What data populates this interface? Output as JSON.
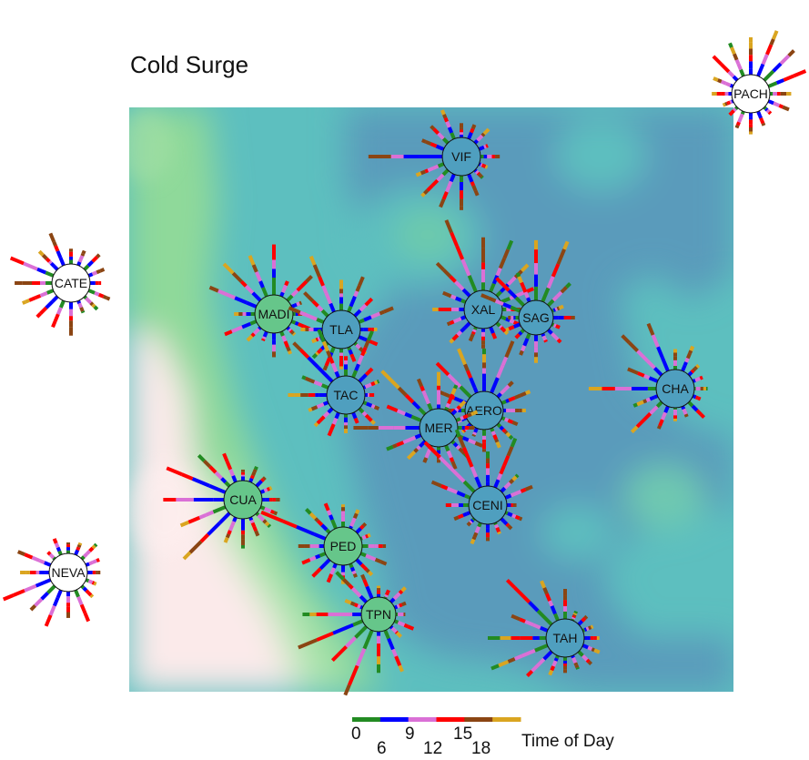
{
  "title": "Cold Surge",
  "legend": {
    "title": "Time of Day",
    "hours": [
      "0",
      "6",
      "9",
      "12",
      "15",
      "18"
    ],
    "colors": [
      "#228b22",
      "#0000ff",
      "#da70d6",
      "#ff0000",
      "#8b4513",
      "#daa520"
    ]
  },
  "palette": {
    "water_dark": "#5a9bbb",
    "water_light": "#5dbfbf",
    "land_green": "#8fd99a",
    "land_pale": "#fbeaea",
    "marker_blue": "#4f9fbf",
    "marker_green": "#66c68a",
    "marker_white": "#ffffff"
  },
  "stations": [
    {
      "id": "VIF",
      "fill": "marker_blue"
    },
    {
      "id": "PACH",
      "fill": "marker_white"
    },
    {
      "id": "CATE",
      "fill": "marker_white"
    },
    {
      "id": "MADI",
      "fill": "marker_green"
    },
    {
      "id": "TLA",
      "fill": "marker_blue"
    },
    {
      "id": "XAL",
      "fill": "marker_blue"
    },
    {
      "id": "SAG",
      "fill": "marker_blue"
    },
    {
      "id": "TAC",
      "fill": "marker_blue"
    },
    {
      "id": "AERO",
      "fill": "marker_blue"
    },
    {
      "id": "MER",
      "fill": "marker_blue"
    },
    {
      "id": "CHA",
      "fill": "marker_blue"
    },
    {
      "id": "CENI",
      "fill": "marker_blue"
    },
    {
      "id": "CUA",
      "fill": "marker_green"
    },
    {
      "id": "PED",
      "fill": "marker_green"
    },
    {
      "id": "NEVA",
      "fill": "marker_white"
    },
    {
      "id": "TPN",
      "fill": "marker_green"
    },
    {
      "id": "TAH",
      "fill": "marker_blue"
    }
  ]
}
